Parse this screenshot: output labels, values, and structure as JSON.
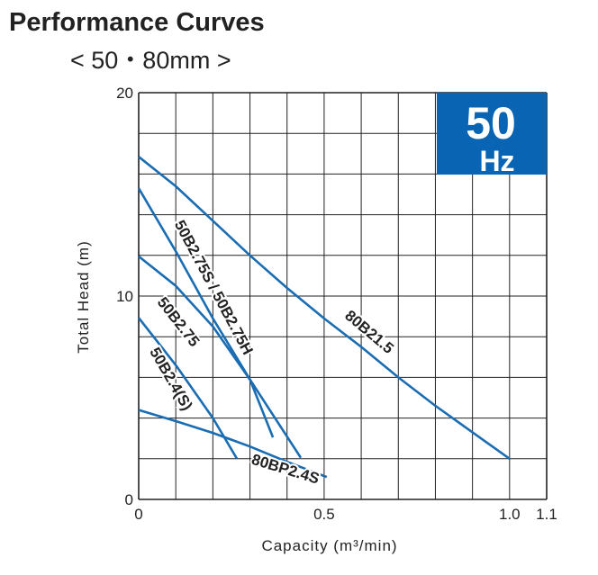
{
  "header": {
    "title": "Performance Curves",
    "subtitle": "< 50・80mm >"
  },
  "badge": {
    "value": "50",
    "unit": "Hz",
    "color": "#0a64b4"
  },
  "chart_data": {
    "type": "line",
    "xlabel": "Capacity (m³/min)",
    "ylabel": "Total Head (m)",
    "xlim": [
      0,
      1.1
    ],
    "ylim": [
      0,
      20
    ],
    "grid": true,
    "x_grid_step": 0.1,
    "y_grid_step": 2,
    "x_ticks": [
      {
        "v": 0,
        "label": "0"
      },
      {
        "v": 0.5,
        "label": "0.5"
      },
      {
        "v": 1.0,
        "label": "1.0"
      },
      {
        "v": 1.1,
        "label": "1.1"
      }
    ],
    "y_ticks": [
      {
        "v": 0,
        "label": "0"
      },
      {
        "v": 10,
        "label": "10"
      },
      {
        "v": 20,
        "label": "20"
      }
    ],
    "line_color": "#1a6db3",
    "series": [
      {
        "name": "80B21.5",
        "label_at": [
          0.62,
          8.2
        ],
        "label_angle": 40,
        "points": [
          [
            0,
            16.85
          ],
          [
            0.1,
            15.4
          ],
          [
            0.2,
            13.7
          ],
          [
            0.3,
            12.0
          ],
          [
            0.4,
            10.4
          ],
          [
            0.5,
            8.9
          ],
          [
            0.6,
            7.5
          ],
          [
            0.7,
            6.0
          ],
          [
            0.8,
            4.6
          ],
          [
            0.9,
            3.3
          ],
          [
            1.0,
            2.0
          ]
        ]
      },
      {
        "name": "50B2.75S / 50B2.75H",
        "label_at": [
          0.2,
          10.4
        ],
        "label_angle": 62,
        "points": [
          [
            0,
            15.3
          ],
          [
            0.1,
            12.2
          ],
          [
            0.2,
            8.9
          ],
          [
            0.3,
            5.9
          ],
          [
            0.362,
            3.05
          ]
        ]
      },
      {
        "name": "50B2.75",
        "label_at": [
          0.105,
          8.7
        ],
        "label_angle": 52,
        "points": [
          [
            0,
            11.95
          ],
          [
            0.1,
            10.5
          ],
          [
            0.2,
            8.5
          ],
          [
            0.3,
            5.9
          ],
          [
            0.437,
            2.05
          ]
        ]
      },
      {
        "name": "50B2.4(S)",
        "label_at": [
          0.085,
          5.9
        ],
        "label_angle": 60,
        "points": [
          [
            0,
            8.93
          ],
          [
            0.1,
            6.6
          ],
          [
            0.2,
            4.0
          ],
          [
            0.265,
            2.0
          ]
        ]
      },
      {
        "name": "80BP2.4S",
        "label_at": [
          0.395,
          1.45
        ],
        "label_angle": 17,
        "points": [
          [
            0,
            4.4
          ],
          [
            0.1,
            3.85
          ],
          [
            0.2,
            3.27
          ],
          [
            0.3,
            2.6
          ],
          [
            0.4,
            1.85
          ],
          [
            0.507,
            1.1
          ]
        ]
      }
    ]
  }
}
